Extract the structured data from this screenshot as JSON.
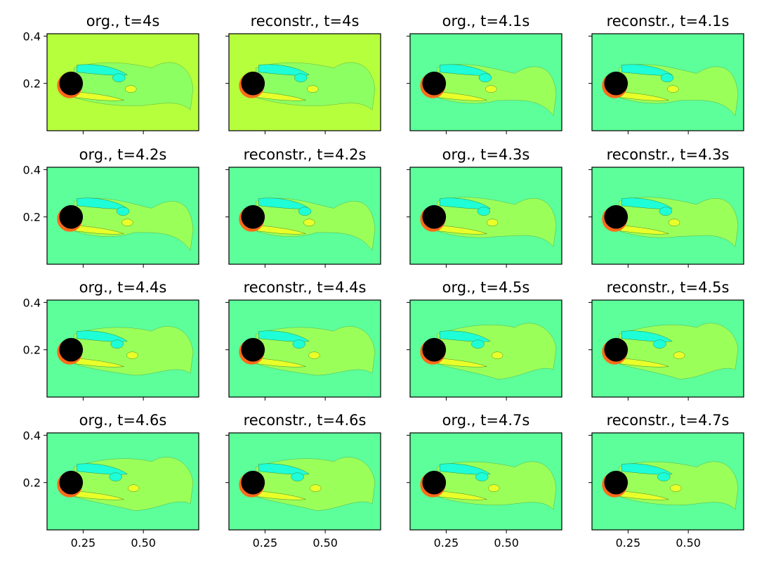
{
  "chart_data": {
    "type": "heatmap",
    "description_kind": "grid of filled contour plots of flow around a cylinder",
    "colormap": "jet",
    "layout": {
      "rows": 4,
      "cols": 4
    },
    "xlim": [
      0.1,
      0.73
    ],
    "ylim": [
      0.0,
      0.41
    ],
    "xticks": [
      0.25,
      0.5
    ],
    "xtick_labels": [
      "0.25",
      "0.50"
    ],
    "yticks": [
      0.2,
      0.4
    ],
    "ytick_labels": [
      "0.2",
      "0.4"
    ],
    "cylinder": {
      "center": [
        0.2,
        0.2
      ],
      "radius": 0.05,
      "color": "#000000"
    },
    "panels": [
      {
        "title": "org., t=4s",
        "kind": "org",
        "t": 4.0,
        "bg": "#b6ff3d"
      },
      {
        "title": "reconstr., t=4s",
        "kind": "reconstr",
        "t": 4.0,
        "bg": "#b6ff3d"
      },
      {
        "title": "org., t=4.1s",
        "kind": "org",
        "t": 4.1,
        "bg": "#5cff9a"
      },
      {
        "title": "reconstr., t=4.1s",
        "kind": "reconstr",
        "t": 4.1,
        "bg": "#5cff9a"
      },
      {
        "title": "org., t=4.2s",
        "kind": "org",
        "t": 4.2,
        "bg": "#5cff9a"
      },
      {
        "title": "reconstr., t=4.2s",
        "kind": "reconstr",
        "t": 4.2,
        "bg": "#5cff9a"
      },
      {
        "title": "org., t=4.3s",
        "kind": "org",
        "t": 4.3,
        "bg": "#5cff9a"
      },
      {
        "title": "reconstr., t=4.3s",
        "kind": "reconstr",
        "t": 4.3,
        "bg": "#5cff9a"
      },
      {
        "title": "org., t=4.4s",
        "kind": "org",
        "t": 4.4,
        "bg": "#5cff9a"
      },
      {
        "title": "reconstr., t=4.4s",
        "kind": "reconstr",
        "t": 4.4,
        "bg": "#5cff9a"
      },
      {
        "title": "org., t=4.5s",
        "kind": "org",
        "t": 4.5,
        "bg": "#5cff9a"
      },
      {
        "title": "reconstr., t=4.5s",
        "kind": "reconstr",
        "t": 4.5,
        "bg": "#5cff9a"
      },
      {
        "title": "org., t=4.6s",
        "kind": "org",
        "t": 4.6,
        "bg": "#5cff9a"
      },
      {
        "title": "reconstr., t=4.6s",
        "kind": "reconstr",
        "t": 4.6,
        "bg": "#5cff9a"
      },
      {
        "title": "org., t=4.7s",
        "kind": "org",
        "t": 4.7,
        "bg": "#5cff9a"
      },
      {
        "title": "reconstr., t=4.7s",
        "kind": "reconstr",
        "t": 4.7,
        "bg": "#5cff9a"
      }
    ]
  }
}
